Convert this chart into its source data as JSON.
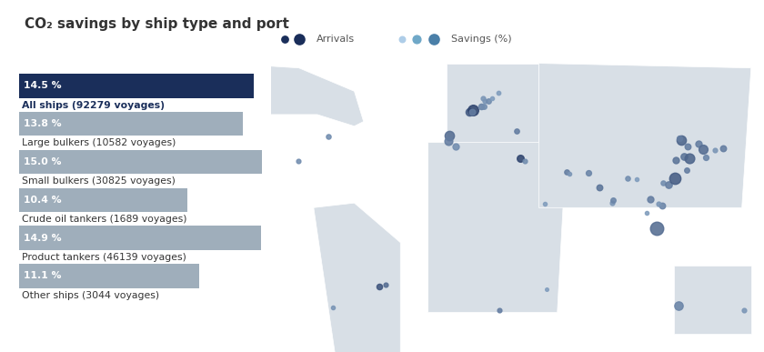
{
  "title": "CO₂ savings by ship type and port",
  "background_color": "#ffffff",
  "title_color": "#333333",
  "title_fontsize": 11,
  "bars": [
    {
      "label": "All ships (92279 voyages)",
      "pct": 14.5,
      "bar_color": "#1a2e5a",
      "text_color": "#ffffff",
      "label_bold": true
    },
    {
      "label": "Large bulkers (10582 voyages)",
      "pct": 13.8,
      "bar_color": "#9faebb",
      "text_color": "#ffffff",
      "label_bold": false
    },
    {
      "label": "Small bulkers (30825 voyages)",
      "pct": 15.0,
      "bar_color": "#9faebb",
      "text_color": "#ffffff",
      "label_bold": false
    },
    {
      "label": "Crude oil tankers (1689 voyages)",
      "pct": 10.4,
      "bar_color": "#9faebb",
      "text_color": "#ffffff",
      "label_bold": false
    },
    {
      "label": "Product tankers (46139 voyages)",
      "pct": 14.9,
      "bar_color": "#9faebb",
      "text_color": "#ffffff",
      "label_bold": false
    },
    {
      "label": "Other ships (3044 voyages)",
      "pct": 11.1,
      "bar_color": "#9faebb",
      "text_color": "#ffffff",
      "label_bold": false
    }
  ],
  "pct_max": 15.0,
  "arrival_dark": "#1a2e5a",
  "savings_light": "#aecde8",
  "savings_mid": "#6fa8c8",
  "savings_dark": "#4a7fa8",
  "map_bg": "#f0f3f6",
  "map_land": "#d8dfe6",
  "ports": [
    {
      "lon": -8.6,
      "lat": 41.15,
      "size": 55,
      "intensity": 0.6
    },
    {
      "lon": -9.1,
      "lat": 38.7,
      "size": 40,
      "intensity": 0.5
    },
    {
      "lon": -5.0,
      "lat": 36.1,
      "size": 25,
      "intensity": 0.4
    },
    {
      "lon": 2.3,
      "lat": 51.3,
      "size": 35,
      "intensity": 0.7
    },
    {
      "lon": 4.3,
      "lat": 51.9,
      "size": 70,
      "intensity": 0.85
    },
    {
      "lon": 3.7,
      "lat": 51.3,
      "size": 22,
      "intensity": 0.5
    },
    {
      "lon": 8.7,
      "lat": 53.5,
      "size": 20,
      "intensity": 0.45
    },
    {
      "lon": 10.0,
      "lat": 53.5,
      "size": 16,
      "intensity": 0.4
    },
    {
      "lon": 9.9,
      "lat": 57.0,
      "size": 12,
      "intensity": 0.35
    },
    {
      "lon": 10.6,
      "lat": 55.7,
      "size": 12,
      "intensity": 0.35
    },
    {
      "lon": 12.6,
      "lat": 55.7,
      "size": 16,
      "intensity": 0.4
    },
    {
      "lon": 18.0,
      "lat": 59.3,
      "size": 10,
      "intensity": 0.3
    },
    {
      "lon": 14.5,
      "lat": 57.0,
      "size": 9,
      "intensity": 0.3
    },
    {
      "lon": 28.0,
      "lat": 43.0,
      "size": 15,
      "intensity": 0.5
    },
    {
      "lon": 30.0,
      "lat": 31.2,
      "size": 30,
      "intensity": 0.85
    },
    {
      "lon": 32.5,
      "lat": 29.9,
      "size": 12,
      "intensity": 0.4
    },
    {
      "lon": 43.0,
      "lat": 11.6,
      "size": 9,
      "intensity": 0.3
    },
    {
      "lon": 55.3,
      "lat": 25.3,
      "size": 15,
      "intensity": 0.5
    },
    {
      "lon": 56.4,
      "lat": 24.5,
      "size": 9,
      "intensity": 0.35
    },
    {
      "lon": 67.0,
      "lat": 24.8,
      "size": 18,
      "intensity": 0.45
    },
    {
      "lon": 72.8,
      "lat": 18.9,
      "size": 22,
      "intensity": 0.55
    },
    {
      "lon": 79.8,
      "lat": 11.9,
      "size": 12,
      "intensity": 0.35
    },
    {
      "lon": 80.3,
      "lat": 13.1,
      "size": 16,
      "intensity": 0.45
    },
    {
      "lon": 88.3,
      "lat": 22.5,
      "size": 14,
      "intensity": 0.4
    },
    {
      "lon": 92.9,
      "lat": 22.3,
      "size": 9,
      "intensity": 0.3
    },
    {
      "lon": 100.5,
      "lat": 13.7,
      "size": 25,
      "intensity": 0.5
    },
    {
      "lon": 103.8,
      "lat": 1.3,
      "size": 110,
      "intensity": 0.6
    },
    {
      "lon": 106.7,
      "lat": 10.8,
      "size": 22,
      "intensity": 0.45
    },
    {
      "lon": 107.2,
      "lat": 20.8,
      "size": 14,
      "intensity": 0.4
    },
    {
      "lon": 110.3,
      "lat": 20.0,
      "size": 28,
      "intensity": 0.5
    },
    {
      "lon": 113.9,
      "lat": 22.5,
      "size": 80,
      "intensity": 0.7
    },
    {
      "lon": 114.2,
      "lat": 30.6,
      "size": 25,
      "intensity": 0.55
    },
    {
      "lon": 117.2,
      "lat": 39.1,
      "size": 55,
      "intensity": 0.65
    },
    {
      "lon": 118.8,
      "lat": 32.0,
      "size": 28,
      "intensity": 0.55
    },
    {
      "lon": 120.4,
      "lat": 36.1,
      "size": 22,
      "intensity": 0.5
    },
    {
      "lon": 121.5,
      "lat": 31.2,
      "size": 60,
      "intensity": 0.65
    },
    {
      "lon": 126.6,
      "lat": 37.4,
      "size": 25,
      "intensity": 0.5
    },
    {
      "lon": 129.0,
      "lat": 35.1,
      "size": 50,
      "intensity": 0.6
    },
    {
      "lon": 130.4,
      "lat": 31.6,
      "size": 18,
      "intensity": 0.45
    },
    {
      "lon": 135.4,
      "lat": 34.7,
      "size": 12,
      "intensity": 0.35
    },
    {
      "lon": 139.7,
      "lat": 35.5,
      "size": 22,
      "intensity": 0.5
    },
    {
      "lon": -46.3,
      "lat": -23.9,
      "size": 20,
      "intensity": 0.75
    },
    {
      "lon": -43.2,
      "lat": -22.9,
      "size": 12,
      "intensity": 0.6
    },
    {
      "lon": 18.5,
      "lat": -33.9,
      "size": 12,
      "intensity": 0.5
    },
    {
      "lon": 115.8,
      "lat": -31.9,
      "size": 45,
      "intensity": 0.45
    },
    {
      "lon": 151.2,
      "lat": -33.9,
      "size": 12,
      "intensity": 0.35
    },
    {
      "lon": -71.5,
      "lat": -33.0,
      "size": 9,
      "intensity": 0.35
    },
    {
      "lon": 120.0,
      "lat": 26.0,
      "size": 16,
      "intensity": 0.5
    },
    {
      "lon": 116.0,
      "lat": 39.9,
      "size": 18,
      "intensity": 0.5
    },
    {
      "lon": -73.9,
      "lat": 40.6,
      "size": 14,
      "intensity": 0.4
    },
    {
      "lon": -90.1,
      "lat": 29.9,
      "size": 12,
      "intensity": 0.4
    },
    {
      "lon": -118.2,
      "lat": 33.7,
      "size": 14,
      "intensity": 0.4
    },
    {
      "lon": 44.3,
      "lat": -25.1,
      "size": 7,
      "intensity": 0.3
    },
    {
      "lon": 104.9,
      "lat": 11.6,
      "size": 12,
      "intensity": 0.35
    },
    {
      "lon": 98.4,
      "lat": 7.9,
      "size": 9,
      "intensity": 0.3
    }
  ]
}
